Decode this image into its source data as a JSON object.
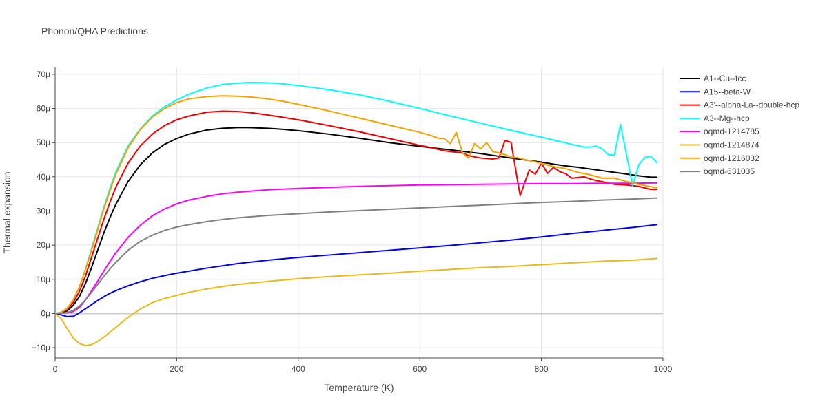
{
  "chart_data": {
    "type": "line",
    "title": "Phonon/QHA Predictions",
    "xlabel": "Temperature (K)",
    "ylabel": "Thermal expansion",
    "xlim": [
      0,
      1000
    ],
    "ylim": [
      -13,
      72
    ],
    "y_unit_suffix": "μ",
    "x_ticks": [
      0,
      200,
      400,
      600,
      800,
      1000
    ],
    "y_ticks": [
      -10,
      0,
      10,
      20,
      30,
      40,
      50,
      60,
      70
    ],
    "grid": true,
    "legend_position": "right",
    "series": [
      {
        "name": "A1--Cu--fcc",
        "color": "#000000",
        "x": [
          0,
          10,
          20,
          30,
          40,
          50,
          60,
          70,
          80,
          90,
          100,
          120,
          140,
          160,
          180,
          200,
          220,
          250,
          275,
          300,
          320,
          350,
          375,
          400,
          450,
          500,
          550,
          600,
          650,
          700,
          750,
          800,
          820,
          840,
          860,
          880,
          900,
          920,
          940,
          960,
          980,
          990
        ],
        "y": [
          0,
          0.2,
          0.8,
          2.4,
          5.0,
          8.8,
          13.5,
          18.5,
          23.5,
          28.0,
          32.0,
          38.6,
          43.5,
          47.0,
          49.5,
          51.2,
          52.5,
          53.7,
          54.2,
          54.4,
          54.4,
          54.2,
          53.9,
          53.5,
          52.5,
          51.3,
          50.0,
          48.9,
          47.9,
          46.8,
          45.5,
          44.3,
          43.7,
          43.2,
          42.8,
          42.3,
          41.8,
          41.3,
          40.8,
          40.3,
          39.9,
          39.9
        ]
      },
      {
        "name": "A15--beta-W",
        "color": "#0000ee",
        "x": [
          0,
          10,
          20,
          30,
          40,
          50,
          60,
          70,
          80,
          90,
          100,
          120,
          140,
          160,
          180,
          200,
          250,
          300,
          350,
          400,
          450,
          500,
          550,
          600,
          650,
          700,
          750,
          800,
          850,
          900,
          950,
          990
        ],
        "y": [
          0,
          -0.4,
          -0.9,
          -0.8,
          0.2,
          1.4,
          2.6,
          3.8,
          4.9,
          5.9,
          6.7,
          8.1,
          9.3,
          10.3,
          11.1,
          11.8,
          13.3,
          14.6,
          15.6,
          16.4,
          17.1,
          17.8,
          18.5,
          19.2,
          19.9,
          20.7,
          21.5,
          22.4,
          23.4,
          24.3,
          25.2,
          26.0
        ]
      },
      {
        "name": "A3'--alpha-La--double-hcp",
        "color": "#ee0000",
        "x": [
          0,
          10,
          20,
          30,
          40,
          50,
          60,
          70,
          80,
          90,
          100,
          120,
          140,
          160,
          180,
          200,
          220,
          250,
          275,
          300,
          325,
          350,
          375,
          400,
          450,
          500,
          550,
          600,
          625,
          640,
          660,
          670,
          680,
          700,
          720,
          730,
          740,
          750,
          765,
          780,
          790,
          800,
          810,
          820,
          830,
          840,
          850,
          860,
          870,
          880,
          890,
          900,
          920,
          940,
          960,
          980,
          990
        ],
        "y": [
          0,
          0.3,
          1.2,
          3.2,
          6.5,
          11.0,
          16.5,
          22.0,
          27.5,
          32.5,
          37.0,
          44.0,
          49.0,
          52.5,
          55.0,
          56.7,
          57.8,
          58.9,
          59.2,
          59.1,
          58.7,
          58.1,
          57.4,
          56.7,
          55.0,
          53.2,
          51.2,
          49.2,
          48.3,
          47.6,
          47.2,
          47.0,
          46.2,
          45.5,
          45.2,
          45.5,
          50.6,
          50.1,
          34.5,
          42.0,
          40.8,
          44.0,
          41.0,
          42.8,
          41.5,
          40.9,
          39.6,
          39.8,
          40.0,
          39.4,
          38.9,
          38.6,
          37.8,
          37.6,
          37.2,
          36.3,
          36.3
        ]
      },
      {
        "name": "A3--Mg--hcp",
        "color": "#00ffff",
        "x": [
          0,
          10,
          20,
          30,
          40,
          50,
          60,
          70,
          80,
          90,
          100,
          120,
          140,
          160,
          180,
          200,
          220,
          250,
          275,
          300,
          320,
          350,
          375,
          400,
          450,
          500,
          550,
          600,
          650,
          700,
          750,
          800,
          850,
          870,
          880,
          890,
          900,
          910,
          920,
          930,
          940,
          950,
          960,
          970,
          980,
          990
        ],
        "y": [
          0,
          0.4,
          1.5,
          4.0,
          7.8,
          13.0,
          19.0,
          25.0,
          31.0,
          36.5,
          41.5,
          49.0,
          54.0,
          57.8,
          60.5,
          62.5,
          64.2,
          66.0,
          67.0,
          67.4,
          67.6,
          67.5,
          67.2,
          66.7,
          65.5,
          64.0,
          62.1,
          60.0,
          57.8,
          55.7,
          53.6,
          51.6,
          49.5,
          48.7,
          48.7,
          49.0,
          48.2,
          46.5,
          46.3,
          55.3,
          46.5,
          37.3,
          43.5,
          45.7,
          46.0,
          44.2
        ]
      },
      {
        "name": "oqmd-1214785",
        "color": "#ff00ff",
        "x": [
          0,
          10,
          20,
          30,
          40,
          50,
          60,
          70,
          80,
          90,
          100,
          120,
          140,
          160,
          180,
          200,
          220,
          250,
          275,
          300,
          350,
          400,
          450,
          500,
          550,
          600,
          650,
          700,
          750,
          800,
          850,
          900,
          950,
          990
        ],
        "y": [
          0,
          0.1,
          0.2,
          0.6,
          1.8,
          4.0,
          6.7,
          9.5,
          12.4,
          15.2,
          17.8,
          22.3,
          25.8,
          28.6,
          30.6,
          32.1,
          33.2,
          34.3,
          35.0,
          35.5,
          36.2,
          36.6,
          36.9,
          37.2,
          37.4,
          37.6,
          37.7,
          37.8,
          37.9,
          38.0,
          38.0,
          38.1,
          38.1,
          38.2
        ]
      },
      {
        "name": "oqmd-1214874",
        "color": "#ecb91a",
        "x": [
          0,
          10,
          20,
          30,
          40,
          50,
          60,
          70,
          80,
          90,
          100,
          120,
          140,
          160,
          180,
          200,
          220,
          250,
          275,
          300,
          350,
          400,
          450,
          500,
          550,
          600,
          650,
          700,
          750,
          800,
          850,
          900,
          950,
          990
        ],
        "y": [
          0,
          -1.5,
          -4.5,
          -7.2,
          -8.8,
          -9.4,
          -9.1,
          -8.2,
          -6.9,
          -5.5,
          -4.0,
          -1.1,
          1.3,
          3.2,
          4.4,
          5.3,
          6.2,
          7.2,
          7.9,
          8.5,
          9.4,
          10.2,
          10.8,
          11.3,
          11.8,
          12.4,
          12.9,
          13.4,
          13.8,
          14.3,
          14.8,
          15.3,
          15.6,
          16.1
        ]
      },
      {
        "name": "oqmd-1216032",
        "color": "#f5a200",
        "x": [
          0,
          10,
          20,
          30,
          40,
          50,
          60,
          70,
          80,
          90,
          100,
          120,
          140,
          160,
          180,
          200,
          220,
          250,
          275,
          300,
          320,
          350,
          375,
          400,
          450,
          500,
          550,
          600,
          620,
          630,
          640,
          650,
          660,
          670,
          680,
          690,
          700,
          710,
          720,
          730,
          740,
          750,
          760,
          770,
          780,
          790,
          800,
          820,
          840,
          860,
          880,
          900,
          920,
          940,
          960,
          980,
          990
        ],
        "y": [
          0,
          0.4,
          1.6,
          4.0,
          7.8,
          12.8,
          18.5,
          24.5,
          30.5,
          35.8,
          40.8,
          48.5,
          53.8,
          57.5,
          60.0,
          61.7,
          62.8,
          63.5,
          63.7,
          63.6,
          63.4,
          62.8,
          62.1,
          61.2,
          59.3,
          57.2,
          55.1,
          53.0,
          52.0,
          51.3,
          51.2,
          49.7,
          53.0,
          47.0,
          45.5,
          49.7,
          48.2,
          50.0,
          47.4,
          47.0,
          46.5,
          45.8,
          45.6,
          45.2,
          44.7,
          44.4,
          43.9,
          43.0,
          42.4,
          41.3,
          40.6,
          39.6,
          39.6,
          38.6,
          37.8,
          37.1,
          36.8
        ]
      },
      {
        "name": "oqmd-631035",
        "color": "#808080",
        "x": [
          0,
          10,
          20,
          30,
          40,
          50,
          60,
          70,
          80,
          90,
          100,
          120,
          140,
          160,
          180,
          200,
          220,
          250,
          275,
          300,
          350,
          400,
          450,
          500,
          550,
          600,
          650,
          700,
          750,
          800,
          850,
          900,
          950,
          990
        ],
        "y": [
          0,
          0.1,
          0.3,
          0.9,
          2.2,
          4.0,
          6.2,
          8.5,
          10.8,
          13.0,
          15.0,
          18.5,
          21.1,
          22.9,
          24.3,
          25.3,
          26.0,
          26.9,
          27.5,
          28.0,
          28.7,
          29.2,
          29.7,
          30.1,
          30.5,
          30.9,
          31.3,
          31.7,
          32.1,
          32.5,
          32.8,
          33.2,
          33.5,
          33.8
        ]
      }
    ]
  }
}
